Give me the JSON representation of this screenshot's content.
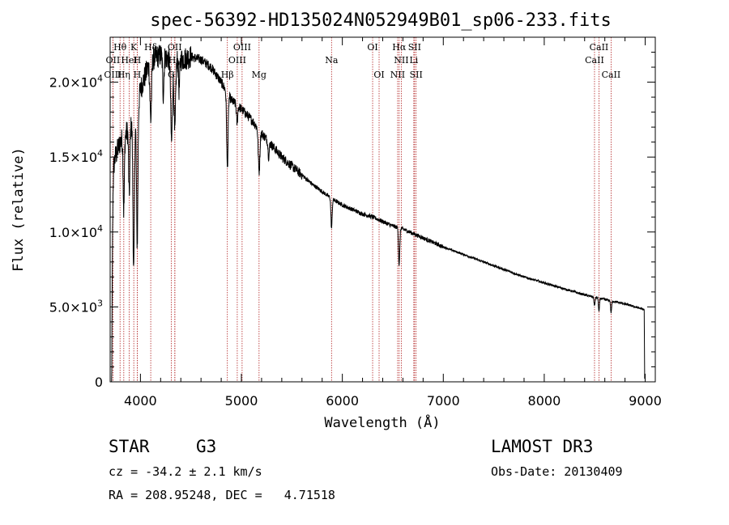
{
  "chart_data": {
    "type": "line",
    "title": "spec-56392-HD135024N052949B01_sp06-233.fits",
    "xlabel": "Wavelength (Å)",
    "ylabel": "Flux (relative)",
    "xlim": [
      3700,
      9100
    ],
    "ylim": [
      0,
      23000
    ],
    "xticks": [
      4000,
      5000,
      6000,
      7000,
      8000,
      9000
    ],
    "xtick_labels": [
      "4000",
      "5000",
      "6000",
      "7000",
      "8000",
      "9000"
    ],
    "yticks": [
      0,
      5000,
      10000,
      15000,
      20000
    ],
    "ytick_labels": [
      {
        "mant": "0",
        "exp": ""
      },
      {
        "mant": "5.0×10",
        "exp": "3"
      },
      {
        "mant": "1.0×10",
        "exp": "4"
      },
      {
        "mant": "1.5×10",
        "exp": "4"
      },
      {
        "mant": "2.0×10",
        "exp": "4"
      }
    ],
    "spectrum_continuum": {
      "x": [
        3700,
        3750,
        3800,
        3850,
        3900,
        3950,
        4000,
        4100,
        4200,
        4300,
        4400,
        4500,
        4600,
        4700,
        4800,
        4900,
        5000,
        5100,
        5200,
        5300,
        5400,
        5500,
        5600,
        5700,
        5800,
        5900,
        6000,
        6100,
        6200,
        6300,
        6400,
        6500,
        6600,
        6700,
        6800,
        6900,
        7000,
        7200,
        7400,
        7600,
        7800,
        8000,
        8200,
        8400,
        8600,
        8800,
        8950,
        9000
      ],
      "y": [
        13000,
        15000,
        16000,
        16500,
        17000,
        17500,
        19500,
        21500,
        21800,
        21500,
        21500,
        21700,
        21500,
        21000,
        20000,
        18800,
        18200,
        17500,
        16600,
        15800,
        15000,
        14400,
        13800,
        13200,
        12700,
        12200,
        11800,
        11500,
        11200,
        11000,
        10700,
        10400,
        10200,
        9900,
        9600,
        9300,
        9000,
        8500,
        8000,
        7500,
        7000,
        6600,
        6200,
        5800,
        5500,
        5200,
        4900,
        4800
      ]
    },
    "absorption_features": [
      {
        "x": 3712,
        "depth": 13000,
        "width": 8
      },
      {
        "x": 3835,
        "depth": 5000,
        "width": 6
      },
      {
        "x": 3889,
        "depth": 4500,
        "width": 6
      },
      {
        "x": 3933,
        "depth": 10000,
        "width": 7
      },
      {
        "x": 3968,
        "depth": 9000,
        "width": 7
      },
      {
        "x": 4102,
        "depth": 4000,
        "width": 8
      },
      {
        "x": 4226,
        "depth": 2500,
        "width": 6
      },
      {
        "x": 4308,
        "depth": 5500,
        "width": 8
      },
      {
        "x": 4340,
        "depth": 5000,
        "width": 8
      },
      {
        "x": 4383,
        "depth": 2000,
        "width": 6
      },
      {
        "x": 4861,
        "depth": 5000,
        "width": 7
      },
      {
        "x": 4957,
        "depth": 1200,
        "width": 6
      },
      {
        "x": 5175,
        "depth": 2800,
        "width": 8
      },
      {
        "x": 5270,
        "depth": 1000,
        "width": 6
      },
      {
        "x": 5893,
        "depth": 2000,
        "width": 6
      },
      {
        "x": 6563,
        "depth": 2500,
        "width": 6
      },
      {
        "x": 8498,
        "depth": 600,
        "width": 5
      },
      {
        "x": 8542,
        "depth": 900,
        "width": 5
      },
      {
        "x": 8662,
        "depth": 800,
        "width": 5
      }
    ],
    "emission_lines": [
      {
        "label": "Hθ",
        "x": 3798,
        "row": 0
      },
      {
        "label": "K",
        "x": 3934,
        "row": 0
      },
      {
        "label": "Hδ",
        "x": 4102,
        "row": 0
      },
      {
        "label": "OII",
        "x": 4340,
        "row": 0
      },
      {
        "label": "OIII",
        "x": 5007,
        "row": 0
      },
      {
        "label": "OI",
        "x": 6300,
        "row": 0
      },
      {
        "label": "Hα",
        "x": 6563,
        "row": 0
      },
      {
        "label": "SII",
        "x": 6716,
        "row": 0
      },
      {
        "label": "CaII",
        "x": 8542,
        "row": 0
      },
      {
        "label": "OII",
        "x": 3727,
        "row": 1
      },
      {
        "label": "HeI",
        "x": 3889,
        "row": 1
      },
      {
        "label": "H",
        "x": 3968,
        "row": 1
      },
      {
        "label": "Hγ",
        "x": 4341,
        "row": 1
      },
      {
        "label": "OIII",
        "x": 4959,
        "row": 1
      },
      {
        "label": "Na",
        "x": 5893,
        "row": 1
      },
      {
        "label": "NII",
        "x": 6584,
        "row": 1
      },
      {
        "label": "Li",
        "x": 6708,
        "row": 1
      },
      {
        "label": "CaII",
        "x": 8498,
        "row": 1
      },
      {
        "label": "OIII",
        "x": 3727,
        "row": 2
      },
      {
        "label": "Hη",
        "x": 3835,
        "row": 2
      },
      {
        "label": "H",
        "x": 3968,
        "row": 2
      },
      {
        "label": "G",
        "x": 4305,
        "row": 2
      },
      {
        "label": "Hβ",
        "x": 4861,
        "row": 2
      },
      {
        "label": "Mg",
        "x": 5175,
        "row": 2
      },
      {
        "label": "OI",
        "x": 6364,
        "row": 2
      },
      {
        "label": "NII",
        "x": 6548,
        "row": 2
      },
      {
        "label": "SII",
        "x": 6731,
        "row": 2
      },
      {
        "label": "CaII",
        "x": 8662,
        "row": 2
      }
    ],
    "line_color": "#000000",
    "marker_color": "#b22222"
  },
  "info": {
    "object_type": "STAR",
    "subclass": "G3",
    "survey": "LAMOST DR3",
    "redshift": "cz = -34.2 ± 2.1 km/s",
    "obs_date": "Obs-Date: 20130409",
    "coords": "RA = 208.95248, DEC =   4.71518"
  }
}
